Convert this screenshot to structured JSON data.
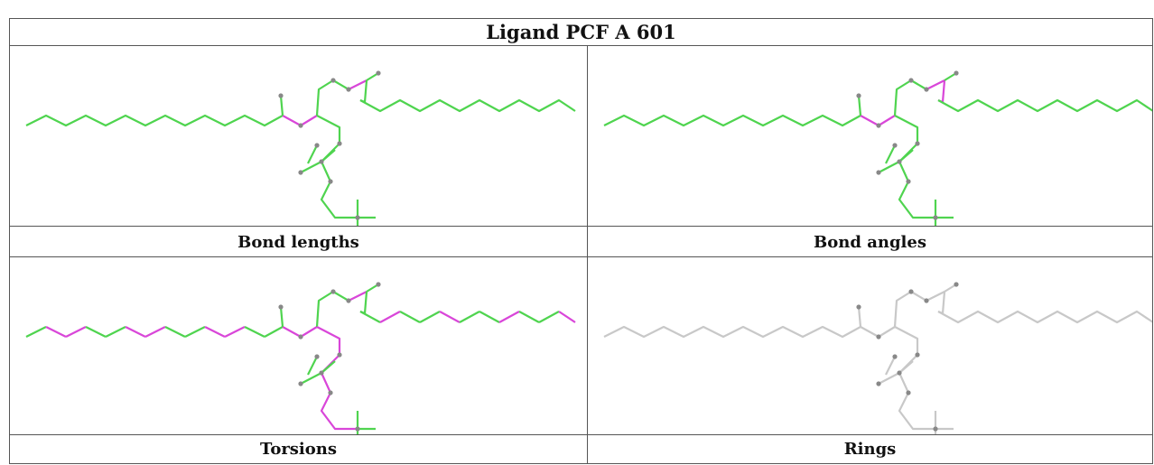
{
  "title": "Ligand PCF A 601",
  "panels": [
    {
      "caption": "Bond lengths",
      "scheme": "lengths"
    },
    {
      "caption": "Bond angles",
      "scheme": "angles"
    },
    {
      "caption": "Torsions",
      "scheme": "torsions"
    },
    {
      "caption": "Rings",
      "scheme": "rings"
    }
  ],
  "colors": {
    "good": "#4fd44f",
    "outlier": "#d946d9",
    "neutral": "#c8c8c8",
    "atom": "#888888",
    "border": "#555555"
  }
}
